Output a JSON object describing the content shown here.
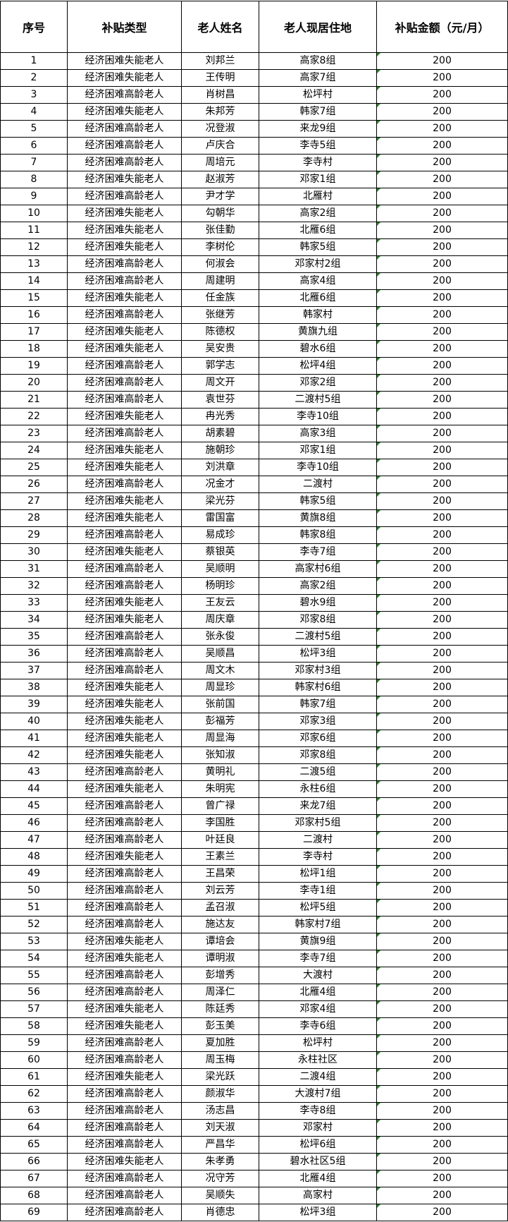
{
  "table": {
    "headers": [
      "序号",
      "补贴类型",
      "老人姓名",
      "老人现居住地",
      "补贴金额（元/月）"
    ],
    "rows": [
      [
        "1",
        "经济困难失能老人",
        "刘邦兰",
        "高家8组",
        "200"
      ],
      [
        "2",
        "经济困难失能老人",
        "王传明",
        "高家7组",
        "200"
      ],
      [
        "3",
        "经济困难高龄老人",
        "肖树昌",
        "松坪村",
        "200"
      ],
      [
        "4",
        "经济困难失能老人",
        "朱邦芳",
        "韩家7组",
        "200"
      ],
      [
        "5",
        "经济困难高龄老人",
        "况登淑",
        "来龙9组",
        "200"
      ],
      [
        "6",
        "经济困难高龄老人",
        "卢庆合",
        "李寺5组",
        "200"
      ],
      [
        "7",
        "经济困难高龄老人",
        "周培元",
        "李寺村",
        "200"
      ],
      [
        "8",
        "经济困难失能老人",
        "赵淑芳",
        "邓家1组",
        "200"
      ],
      [
        "9",
        "经济困难高龄老人",
        "尹才学",
        "北雁村",
        "200"
      ],
      [
        "10",
        "经济困难失能老人",
        "勾朝华",
        "高家2组",
        "200"
      ],
      [
        "11",
        "经济困难失能老人",
        "张佳勤",
        "北雁6组",
        "200"
      ],
      [
        "12",
        "经济困难失能老人",
        "李树伦",
        "韩家5组",
        "200"
      ],
      [
        "13",
        "经济困难高龄老人",
        "何淑会",
        "邓家村2组",
        "200"
      ],
      [
        "14",
        "经济困难高龄老人",
        "周建明",
        "高家4组",
        "200"
      ],
      [
        "15",
        "经济困难失能老人",
        "任金族",
        "北雁6组",
        "200"
      ],
      [
        "16",
        "经济困难高龄老人",
        "张继芳",
        "韩家村",
        "200"
      ],
      [
        "17",
        "经济困难失能老人",
        "陈德权",
        "黄旗九组",
        "200"
      ],
      [
        "18",
        "经济困难失能老人",
        "吴安贵",
        "碧水6组",
        "200"
      ],
      [
        "19",
        "经济困难高龄老人",
        "郭学志",
        "松坪4组",
        "200"
      ],
      [
        "20",
        "经济困难高龄老人",
        "周文开",
        "邓家2组",
        "200"
      ],
      [
        "21",
        "经济困难高龄老人",
        "袁世芬",
        "二渡村5组",
        "200"
      ],
      [
        "22",
        "经济困难失能老人",
        "冉光秀",
        "李寺10组",
        "200"
      ],
      [
        "23",
        "经济困难高龄老人",
        "胡素碧",
        "高家3组",
        "200"
      ],
      [
        "24",
        "经济困难失能老人",
        "施朝珍",
        "邓家1组",
        "200"
      ],
      [
        "25",
        "经济困难失能老人",
        "刘洪章",
        "李寺10组",
        "200"
      ],
      [
        "26",
        "经济困难高龄老人",
        "况金才",
        "二渡村",
        "200"
      ],
      [
        "27",
        "经济困难失能老人",
        "梁光芬",
        "韩家5组",
        "200"
      ],
      [
        "28",
        "经济困难失能老人",
        "雷国富",
        "黄旗8组",
        "200"
      ],
      [
        "29",
        "经济困难高龄老人",
        "易成珍",
        "韩家8组",
        "200"
      ],
      [
        "30",
        "经济困难失能老人",
        "蔡银英",
        "李寺7组",
        "200"
      ],
      [
        "31",
        "经济困难高龄老人",
        "吴顺明",
        "高家村6组",
        "200"
      ],
      [
        "32",
        "经济困难高龄老人",
        "杨明珍",
        "高家2组",
        "200"
      ],
      [
        "33",
        "经济困难失能老人",
        "王友云",
        "碧水9组",
        "200"
      ],
      [
        "34",
        "经济困难失能老人",
        "周庆章",
        "邓家8组",
        "200"
      ],
      [
        "35",
        "经济困难高龄老人",
        "张永俊",
        "二渡村5组",
        "200"
      ],
      [
        "36",
        "经济困难高龄老人",
        "吴顺昌",
        "松坪3组",
        "200"
      ],
      [
        "37",
        "经济困难高龄老人",
        "周文木",
        "邓家村3组",
        "200"
      ],
      [
        "38",
        "经济困难失能老人",
        "周显珍",
        "韩家村6组",
        "200"
      ],
      [
        "39",
        "经济困难失能老人",
        "张前国",
        "韩家7组",
        "200"
      ],
      [
        "40",
        "经济困难失能老人",
        "彭福芳",
        "邓家3组",
        "200"
      ],
      [
        "41",
        "经济困难失能老人",
        "周显海",
        "邓家6组",
        "200"
      ],
      [
        "42",
        "经济困难失能老人",
        "张知淑",
        "邓家8组",
        "200"
      ],
      [
        "43",
        "经济困难高龄老人",
        "黄明礼",
        "二渡5组",
        "200"
      ],
      [
        "44",
        "经济困难失能老人",
        "朱明宪",
        "永柱6组",
        "200"
      ],
      [
        "45",
        "经济困难高龄老人",
        "曾广禄",
        "来龙7组",
        "200"
      ],
      [
        "46",
        "经济困难高龄老人",
        "李国胜",
        "邓家村5组",
        "200"
      ],
      [
        "47",
        "经济困难高龄老人",
        "叶廷良",
        "二渡村",
        "200"
      ],
      [
        "48",
        "经济困难失能老人",
        "王素兰",
        "李寺村",
        "200"
      ],
      [
        "49",
        "经济困难高龄老人",
        "王昌荣",
        "松坪1组",
        "200"
      ],
      [
        "50",
        "经济困难高龄老人",
        "刘云芳",
        "李寺1组",
        "200"
      ],
      [
        "51",
        "经济困难高龄老人",
        "孟召淑",
        "松坪5组",
        "200"
      ],
      [
        "52",
        "经济困难高龄老人",
        "施达友",
        "韩家村7组",
        "200"
      ],
      [
        "53",
        "经济困难失能老人",
        "谭培会",
        "黄旗9组",
        "200"
      ],
      [
        "54",
        "经济困难失能老人",
        "谭明淑",
        "李寺7组",
        "200"
      ],
      [
        "55",
        "经济困难高龄老人",
        "彭增秀",
        "大渡村",
        "200"
      ],
      [
        "56",
        "经济困难高龄老人",
        "周泽仁",
        "北雁4组",
        "200"
      ],
      [
        "57",
        "经济困难失能老人",
        "陈廷秀",
        "邓家4组",
        "200"
      ],
      [
        "58",
        "经济困难失能老人",
        "彭玉美",
        "李寺6组",
        "200"
      ],
      [
        "59",
        "经济困难高龄老人",
        "夏加胜",
        "松坪村",
        "200"
      ],
      [
        "60",
        "经济困难高龄老人",
        "周玉梅",
        "永柱社区",
        "200"
      ],
      [
        "61",
        "经济困难失能老人",
        "梁光跃",
        "二渡4组",
        "200"
      ],
      [
        "62",
        "经济困难高龄老人",
        "颜淑华",
        "大渡村7组",
        "200"
      ],
      [
        "63",
        "经济困难高龄老人",
        "汤志昌",
        "李寺8组",
        "200"
      ],
      [
        "64",
        "经济困难高龄老人",
        "刘天淑",
        "邓家村",
        "200"
      ],
      [
        "65",
        "经济困难高龄老人",
        "严昌华",
        "松坪6组",
        "200"
      ],
      [
        "66",
        "经济困难失能老人",
        "朱孝勇",
        "碧水社区5组",
        "200"
      ],
      [
        "67",
        "经济困难高龄老人",
        "况守芳",
        "北雁4组",
        "200"
      ],
      [
        "68",
        "经济困难高龄老人",
        "吴顺失",
        "高家村",
        "200"
      ],
      [
        "69",
        "经济困难高龄老人",
        "肖德忠",
        "松坪3组",
        "200"
      ]
    ]
  },
  "colors": {
    "border": "#000000",
    "text_marker": "#1f8a1f"
  }
}
